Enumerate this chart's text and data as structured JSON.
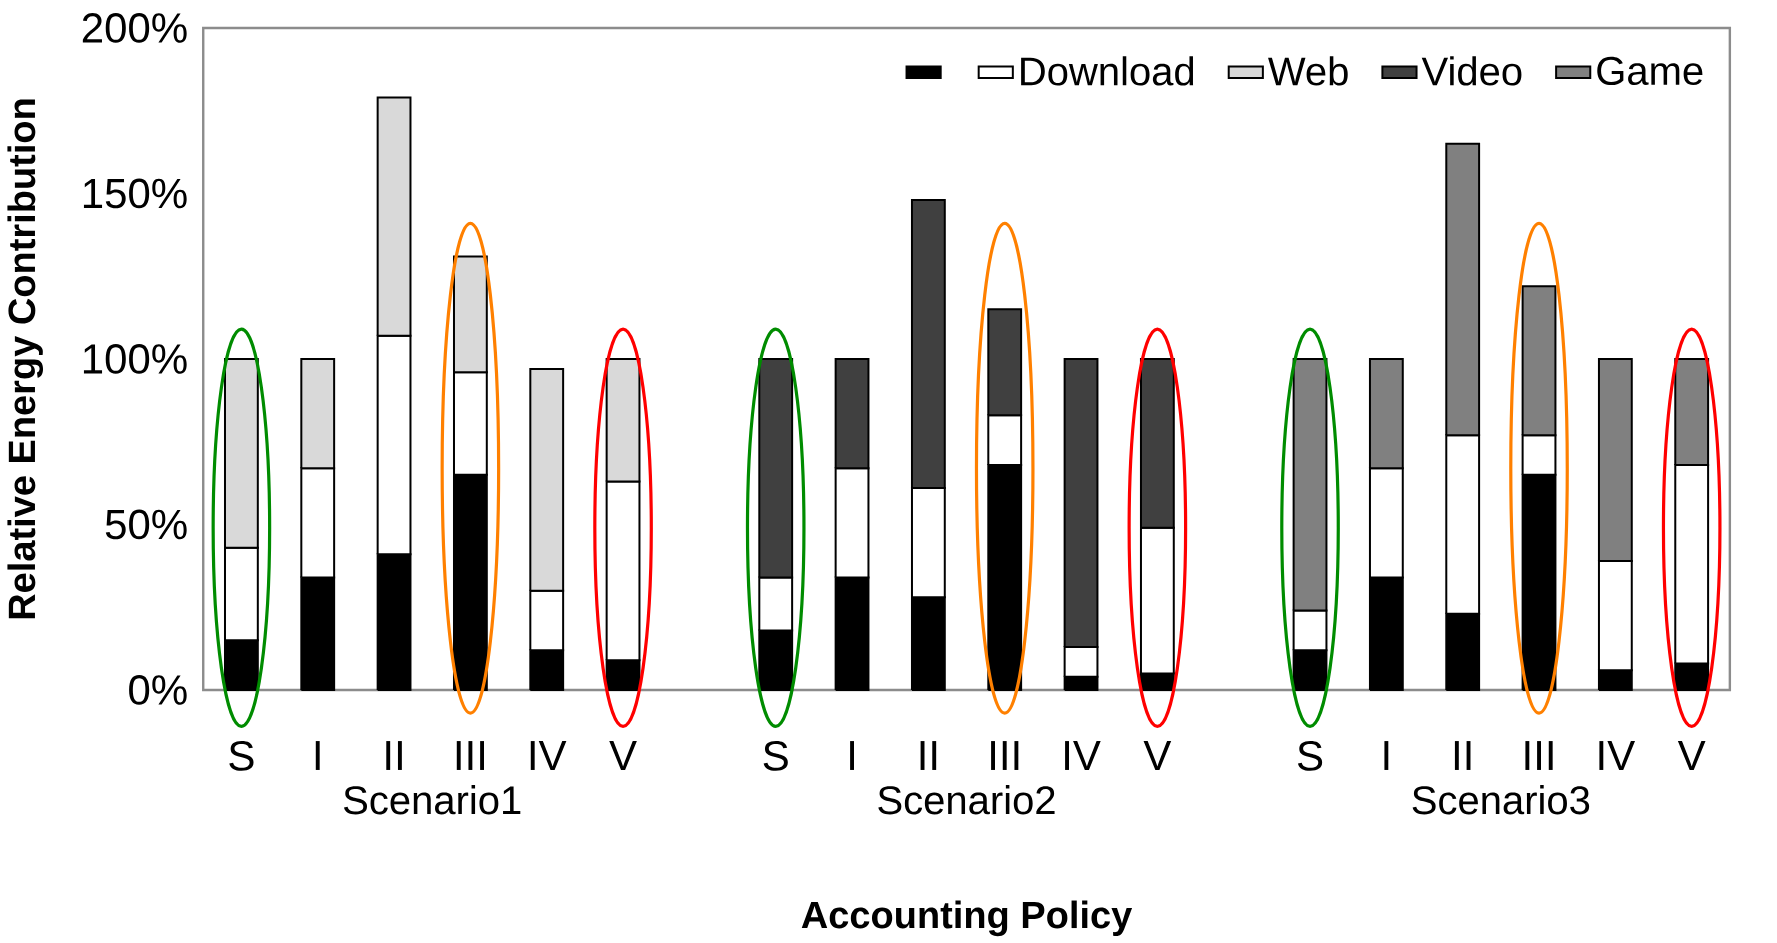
{
  "chart_data": {
    "type": "bar",
    "stacked": true,
    "xlabel": "Accounting Policy",
    "ylabel": "Relative Energy Contribution",
    "categories": [
      "S",
      "I",
      "II",
      "III",
      "IV",
      "V",
      null,
      "S",
      "I",
      "II",
      "III",
      "IV",
      "V",
      null,
      "S",
      "I",
      "II",
      "III",
      "IV",
      "V"
    ],
    "series": [
      {
        "color": "#000000",
        "values": [
          15,
          34,
          41,
          65,
          12,
          9,
          null,
          18,
          34,
          28,
          68,
          4,
          5,
          null,
          12,
          34,
          23,
          65,
          6,
          8
        ]
      },
      {
        "name": "Download",
        "color": "#ffffff",
        "values": [
          28,
          33,
          66,
          31,
          18,
          54,
          null,
          16,
          33,
          33,
          15,
          9,
          44,
          null,
          12,
          33,
          54,
          12,
          33,
          60
        ]
      },
      {
        "name": "Web",
        "color": "#d9d9d9",
        "values": [
          57,
          33,
          72,
          35,
          67,
          37,
          null,
          null,
          null,
          null,
          null,
          null,
          null,
          null,
          null,
          null,
          null,
          null,
          null,
          null
        ]
      },
      {
        "name": "Video",
        "color": "#404040",
        "values": [
          null,
          null,
          null,
          null,
          null,
          null,
          null,
          66,
          33,
          87,
          32,
          87,
          51,
          null,
          null,
          null,
          null,
          null,
          null,
          null
        ]
      },
      {
        "name": "Game",
        "color": "#808080",
        "values": [
          null,
          null,
          null,
          null,
          null,
          null,
          null,
          null,
          null,
          null,
          null,
          null,
          null,
          null,
          76,
          33,
          88,
          45,
          61,
          32
        ]
      }
    ],
    "ylim": [
      0,
      200
    ],
    "yticks": [
      {
        "value": 0,
        "label": "0%"
      },
      {
        "value": 50,
        "label": "50%"
      },
      {
        "value": 100,
        "label": "100%"
      },
      {
        "value": 150,
        "label": "150%"
      },
      {
        "value": 200,
        "label": "200%"
      }
    ],
    "legend": "top right",
    "annotations": [
      "Scenario1",
      "Scenario2",
      "Scenario3"
    ]
  }
}
